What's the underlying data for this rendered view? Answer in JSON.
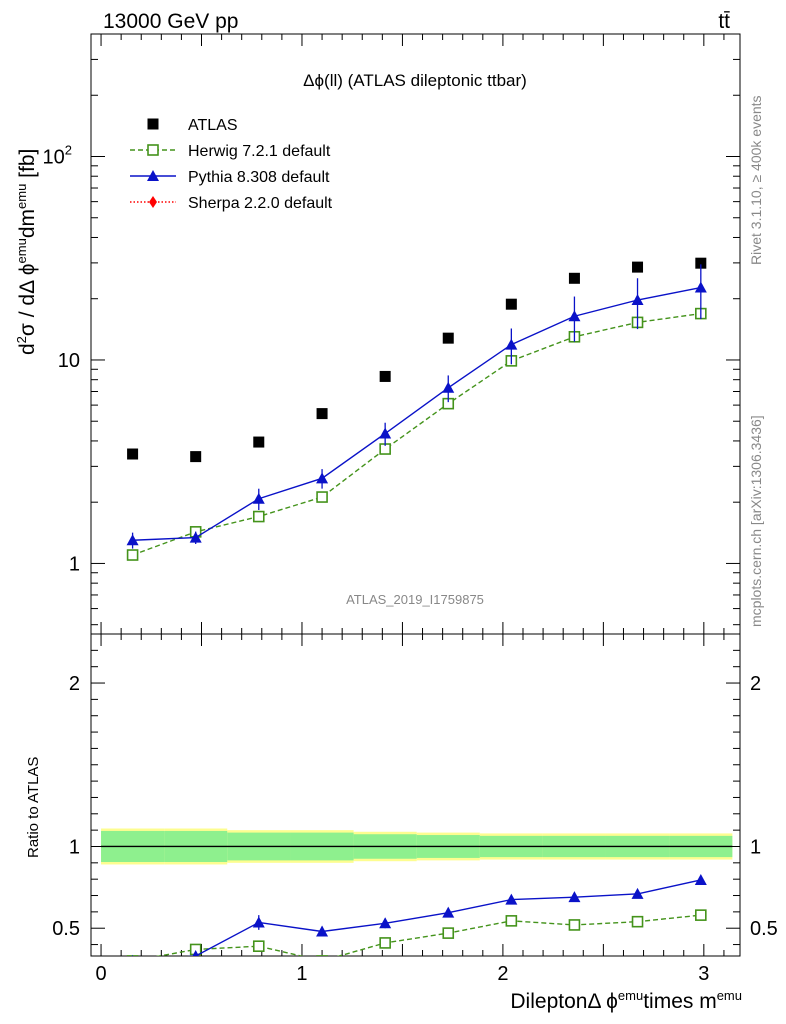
{
  "header": {
    "energy_label": "13000 GeV pp",
    "process_label": "tt̄"
  },
  "side_text": {
    "rivet": "Rivet 3.1.10, ≥ 400k events",
    "mcplots": "mcplots.cern.ch [arXiv:1306.3436]"
  },
  "chart_data": [
    {
      "type": "scatter",
      "title": "Δϕ(ll) (ATLAS dileptonic ttbar)",
      "watermark": "ATLAS_2019_I1759875",
      "ylabel": {
        "base": "d",
        "sup1": "2",
        "mid": "σ / dΔ ϕ",
        "sup2": "emu",
        "mid2": "dm",
        "sup3": "emu",
        "unit": " [fb]"
      },
      "yscale": "log",
      "ylim": [
        0.45,
        400
      ],
      "xlim": [
        -0.05,
        3.18
      ],
      "yticks": [
        {
          "v": 1,
          "label": "1"
        },
        {
          "v": 10,
          "label": "10"
        },
        {
          "v": 100,
          "label": "10",
          "sup": "2"
        }
      ],
      "legend_position": "top-left",
      "x": [
        0.157,
        0.471,
        0.785,
        1.1,
        1.414,
        1.728,
        2.042,
        2.356,
        2.67,
        2.985
      ],
      "series": [
        {
          "name": "ATLAS",
          "marker": "square-filled",
          "line": "none",
          "color": "#000000",
          "values": [
            3.45,
            3.35,
            3.95,
            5.45,
            8.3,
            12.8,
            18.8,
            25.2,
            28.6,
            29.9
          ]
        },
        {
          "name": "Herwig 7.2.1 default",
          "marker": "square-open",
          "line": "dashed",
          "color": "#44931b",
          "values": [
            1.1,
            1.43,
            1.7,
            2.12,
            3.65,
            6.1,
            9.9,
            13.0,
            15.3,
            16.9
          ]
        },
        {
          "name": "Pythia 8.308 default",
          "marker": "triangle",
          "line": "solid",
          "color": "#0a12c8",
          "values": [
            1.3,
            1.34,
            2.08,
            2.62,
            4.35,
            7.3,
            11.9,
            16.4,
            19.7,
            22.7
          ],
          "err": [
            0.09,
            0.07,
            0.12,
            0.11,
            0.13,
            0.15,
            0.2,
            0.25,
            0.28,
            0.3
          ]
        },
        {
          "name": "Sherpa 2.2.0 default",
          "marker": "diamond",
          "line": "dotted",
          "color": "#ff0000",
          "values": []
        }
      ]
    },
    {
      "type": "scatter",
      "xlabel": {
        "pre": "DileptonΔ ϕ",
        "sup1": "emu",
        "mid": "times m",
        "sup2": "emu"
      },
      "ylabel": "Ratio to ATLAS",
      "ylim": [
        0.33,
        2.3
      ],
      "xlim": [
        -0.05,
        3.18
      ],
      "xticks": [
        "0",
        "1",
        "2",
        "3"
      ],
      "yticks": [
        "0.5",
        "1",
        "2"
      ],
      "band_inner": [
        0.095,
        0.095,
        0.085,
        0.085,
        0.075,
        0.07,
        0.065,
        0.065,
        0.065,
        0.065
      ],
      "band_outer": [
        0.11,
        0.11,
        0.1,
        0.1,
        0.09,
        0.085,
        0.08,
        0.08,
        0.08,
        0.08
      ],
      "x": [
        0.157,
        0.471,
        0.785,
        1.1,
        1.414,
        1.728,
        2.042,
        2.356,
        2.67,
        2.985
      ],
      "series": [
        {
          "name": "Herwig 7.2.1 default",
          "color": "#44931b",
          "values": [
            0.3,
            0.37,
            0.39,
            0.3,
            0.41,
            0.47,
            0.545,
            0.52,
            0.54,
            0.58
          ],
          "err": [
            0,
            0.03,
            0.03,
            0,
            0.02,
            0.015,
            0.01,
            0.01,
            0.01,
            0.01
          ]
        },
        {
          "name": "Pythia 8.308 default",
          "color": "#0a12c8",
          "values": [
            0.3,
            0.33,
            0.535,
            0.48,
            0.53,
            0.595,
            0.675,
            0.69,
            0.71,
            0.795
          ],
          "err": [
            0,
            0.02,
            0.045,
            0.03,
            0.03,
            0.02,
            0.015,
            0.01,
            0.01,
            0.01
          ]
        }
      ]
    }
  ]
}
